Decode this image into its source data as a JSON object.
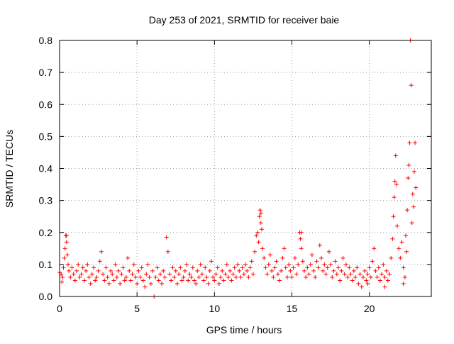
{
  "chart_data": {
    "type": "scatter",
    "title": "Day 253 of 2021, SRMTID for receiver baie",
    "xlabel": "GPS time / hours",
    "ylabel": "SRMTID / TECUs",
    "xlim": [
      0,
      24
    ],
    "ylim": [
      0,
      0.8
    ],
    "xticks": [
      0,
      5,
      10,
      15,
      20
    ],
    "yticks": [
      0,
      0.1,
      0.2,
      0.3,
      0.4,
      0.5,
      0.6,
      0.7,
      0.8
    ],
    "grid": true,
    "marker": "+",
    "color": "#ff0000",
    "series": [
      {
        "name": "baie",
        "points": [
          [
            0.0,
            0.075
          ],
          [
            0.1,
            0.07
          ],
          [
            0.15,
            0.045
          ],
          [
            0.2,
            0.06
          ],
          [
            0.25,
            0.09
          ],
          [
            0.3,
            0.12
          ],
          [
            0.35,
            0.15
          ],
          [
            0.4,
            0.19
          ],
          [
            0.45,
            0.17
          ],
          [
            0.5,
            0.13
          ],
          [
            0.55,
            0.1
          ],
          [
            0.6,
            0.08
          ],
          [
            0.7,
            0.06
          ],
          [
            0.8,
            0.09
          ],
          [
            0.9,
            0.07
          ],
          [
            1.0,
            0.05
          ],
          [
            1.1,
            0.08
          ],
          [
            1.2,
            0.1
          ],
          [
            1.3,
            0.06
          ],
          [
            1.4,
            0.07
          ],
          [
            1.5,
            0.09
          ],
          [
            1.6,
            0.05
          ],
          [
            1.7,
            0.08
          ],
          [
            1.8,
            0.1
          ],
          [
            1.9,
            0.06
          ],
          [
            2.0,
            0.04
          ],
          [
            2.1,
            0.07
          ],
          [
            2.2,
            0.09
          ],
          [
            2.3,
            0.05
          ],
          [
            2.4,
            0.06
          ],
          [
            2.5,
            0.08
          ],
          [
            2.6,
            0.11
          ],
          [
            2.7,
            0.14
          ],
          [
            2.8,
            0.07
          ],
          [
            2.9,
            0.05
          ],
          [
            3.0,
            0.09
          ],
          [
            3.1,
            0.06
          ],
          [
            3.2,
            0.04
          ],
          [
            3.3,
            0.08
          ],
          [
            3.4,
            0.07
          ],
          [
            3.5,
            0.05
          ],
          [
            3.6,
            0.1
          ],
          [
            3.7,
            0.06
          ],
          [
            3.8,
            0.08
          ],
          [
            3.9,
            0.04
          ],
          [
            4.0,
            0.07
          ],
          [
            4.1,
            0.09
          ],
          [
            4.2,
            0.05
          ],
          [
            4.3,
            0.06
          ],
          [
            4.4,
            0.12
          ],
          [
            4.5,
            0.08
          ],
          [
            4.6,
            0.05
          ],
          [
            4.7,
            0.07
          ],
          [
            4.8,
            0.1
          ],
          [
            4.9,
            0.06
          ],
          [
            5.0,
            0.04
          ],
          [
            5.1,
            0.08
          ],
          [
            5.2,
            0.06
          ],
          [
            5.3,
            0.09
          ],
          [
            5.4,
            0.05
          ],
          [
            5.5,
            0.03
          ],
          [
            5.6,
            0.07
          ],
          [
            5.7,
            0.1
          ],
          [
            5.8,
            0.06
          ],
          [
            5.9,
            0.04
          ],
          [
            6.0,
            0.08
          ],
          [
            6.1,
            0.0
          ],
          [
            6.2,
            0.06
          ],
          [
            6.3,
            0.09
          ],
          [
            6.4,
            0.05
          ],
          [
            6.5,
            0.07
          ],
          [
            6.6,
            0.04
          ],
          [
            6.7,
            0.08
          ],
          [
            6.8,
            0.06
          ],
          [
            6.9,
            0.185
          ],
          [
            7.0,
            0.14
          ],
          [
            7.1,
            0.07
          ],
          [
            7.2,
            0.05
          ],
          [
            7.3,
            0.09
          ],
          [
            7.4,
            0.06
          ],
          [
            7.5,
            0.08
          ],
          [
            7.6,
            0.04
          ],
          [
            7.7,
            0.07
          ],
          [
            7.8,
            0.09
          ],
          [
            7.9,
            0.05
          ],
          [
            8.0,
            0.06
          ],
          [
            8.1,
            0.08
          ],
          [
            8.2,
            0.1
          ],
          [
            8.3,
            0.05
          ],
          [
            8.4,
            0.07
          ],
          [
            8.5,
            0.06
          ],
          [
            8.6,
            0.09
          ],
          [
            8.7,
            0.05
          ],
          [
            8.8,
            0.04
          ],
          [
            8.9,
            0.08
          ],
          [
            9.0,
            0.06
          ],
          [
            9.1,
            0.1
          ],
          [
            9.2,
            0.07
          ],
          [
            9.3,
            0.05
          ],
          [
            9.4,
            0.09
          ],
          [
            9.5,
            0.06
          ],
          [
            9.6,
            0.04
          ],
          [
            9.7,
            0.08
          ],
          [
            9.8,
            0.11
          ],
          [
            9.9,
            0.06
          ],
          [
            10.0,
            0.05
          ],
          [
            10.1,
            0.07
          ],
          [
            10.2,
            0.09
          ],
          [
            10.3,
            0.04
          ],
          [
            10.4,
            0.06
          ],
          [
            10.5,
            0.08
          ],
          [
            10.6,
            0.05
          ],
          [
            10.7,
            0.07
          ],
          [
            10.8,
            0.1
          ],
          [
            10.9,
            0.06
          ],
          [
            11.0,
            0.08
          ],
          [
            11.1,
            0.05
          ],
          [
            11.2,
            0.07
          ],
          [
            11.3,
            0.09
          ],
          [
            11.4,
            0.06
          ],
          [
            11.5,
            0.1
          ],
          [
            11.6,
            0.08
          ],
          [
            11.7,
            0.06
          ],
          [
            11.8,
            0.09
          ],
          [
            11.9,
            0.07
          ],
          [
            12.0,
            0.1
          ],
          [
            12.1,
            0.08
          ],
          [
            12.2,
            0.06
          ],
          [
            12.3,
            0.09
          ],
          [
            12.4,
            0.11
          ],
          [
            12.5,
            0.07
          ],
          [
            12.6,
            0.14
          ],
          [
            12.7,
            0.19
          ],
          [
            12.8,
            0.2
          ],
          [
            12.85,
            0.17
          ],
          [
            12.9,
            0.25
          ],
          [
            12.95,
            0.27
          ],
          [
            13.0,
            0.23
          ],
          [
            13.05,
            0.21
          ],
          [
            13.1,
            0.15
          ],
          [
            13.2,
            0.12
          ],
          [
            13.3,
            0.09
          ],
          [
            13.4,
            0.07
          ],
          [
            13.5,
            0.1
          ],
          [
            13.6,
            0.13
          ],
          [
            13.7,
            0.08
          ],
          [
            13.8,
            0.06
          ],
          [
            13.9,
            0.09
          ],
          [
            14.0,
            0.11
          ],
          [
            14.1,
            0.07
          ],
          [
            14.2,
            0.05
          ],
          [
            14.3,
            0.08
          ],
          [
            14.4,
            0.12
          ],
          [
            14.5,
            0.15
          ],
          [
            14.6,
            0.09
          ],
          [
            14.7,
            0.06
          ],
          [
            14.8,
            0.1
          ],
          [
            14.9,
            0.08
          ],
          [
            15.0,
            0.06
          ],
          [
            15.1,
            0.09
          ],
          [
            15.2,
            0.12
          ],
          [
            15.3,
            0.07
          ],
          [
            15.4,
            0.1
          ],
          [
            15.5,
            0.2
          ],
          [
            15.55,
            0.18
          ],
          [
            15.6,
            0.15
          ],
          [
            15.7,
            0.11
          ],
          [
            15.8,
            0.08
          ],
          [
            15.9,
            0.06
          ],
          [
            16.0,
            0.09
          ],
          [
            16.1,
            0.07
          ],
          [
            16.2,
            0.1
          ],
          [
            16.3,
            0.13
          ],
          [
            16.4,
            0.08
          ],
          [
            16.5,
            0.06
          ],
          [
            16.6,
            0.11
          ],
          [
            16.7,
            0.09
          ],
          [
            16.8,
            0.16
          ],
          [
            16.9,
            0.12
          ],
          [
            17.0,
            0.08
          ],
          [
            17.1,
            0.1
          ],
          [
            17.2,
            0.07
          ],
          [
            17.3,
            0.09
          ],
          [
            17.4,
            0.14
          ],
          [
            17.5,
            0.1
          ],
          [
            17.6,
            0.06
          ],
          [
            17.7,
            0.08
          ],
          [
            17.8,
            0.11
          ],
          [
            17.9,
            0.07
          ],
          [
            18.0,
            0.09
          ],
          [
            18.1,
            0.05
          ],
          [
            18.2,
            0.08
          ],
          [
            18.3,
            0.12
          ],
          [
            18.4,
            0.07
          ],
          [
            18.5,
            0.1
          ],
          [
            18.6,
            0.06
          ],
          [
            18.7,
            0.09
          ],
          [
            18.8,
            0.07
          ],
          [
            18.9,
            0.05
          ],
          [
            19.0,
            0.08
          ],
          [
            19.1,
            0.06
          ],
          [
            19.2,
            0.09
          ],
          [
            19.3,
            0.04
          ],
          [
            19.4,
            0.07
          ],
          [
            19.5,
            0.03
          ],
          [
            19.6,
            0.06
          ],
          [
            19.7,
            0.08
          ],
          [
            19.8,
            0.05
          ],
          [
            19.9,
            0.07
          ],
          [
            20.0,
            0.09
          ],
          [
            20.1,
            0.06
          ],
          [
            20.2,
            0.11
          ],
          [
            20.3,
            0.15
          ],
          [
            20.4,
            0.08
          ],
          [
            20.5,
            0.06
          ],
          [
            20.6,
            0.09
          ],
          [
            20.7,
            0.05
          ],
          [
            20.8,
            0.07
          ],
          [
            20.9,
            0.1
          ],
          [
            21.0,
            0.06
          ],
          [
            21.1,
            0.08
          ],
          [
            21.2,
            0.05
          ],
          [
            21.3,
            0.07
          ],
          [
            21.4,
            0.12
          ],
          [
            21.5,
            0.18
          ],
          [
            21.55,
            0.25
          ],
          [
            21.6,
            0.31
          ],
          [
            21.65,
            0.36
          ],
          [
            21.7,
            0.44
          ],
          [
            21.75,
            0.35
          ],
          [
            21.8,
            0.22
          ],
          [
            21.9,
            0.15
          ],
          [
            22.0,
            0.12
          ],
          [
            22.1,
            0.17
          ],
          [
            22.2,
            0.09
          ],
          [
            22.3,
            0.06
          ],
          [
            22.35,
            0.19
          ],
          [
            22.4,
            0.14
          ],
          [
            22.45,
            0.27
          ],
          [
            22.5,
            0.37
          ],
          [
            22.55,
            0.41
          ],
          [
            22.6,
            0.48
          ],
          [
            22.65,
            0.8
          ],
          [
            22.7,
            0.66
          ],
          [
            22.75,
            0.23
          ],
          [
            22.8,
            0.32
          ],
          [
            22.85,
            0.28
          ],
          [
            22.9,
            0.39
          ],
          [
            22.95,
            0.48
          ],
          [
            23.0,
            0.34
          ],
          [
            22.2,
            0.04
          ],
          [
            21.0,
            0.03
          ],
          [
            19.9,
            0.04
          ],
          [
            13.0,
            0.26
          ],
          [
            0.45,
            0.19
          ],
          [
            15.6,
            0.2
          ]
        ]
      }
    ]
  }
}
